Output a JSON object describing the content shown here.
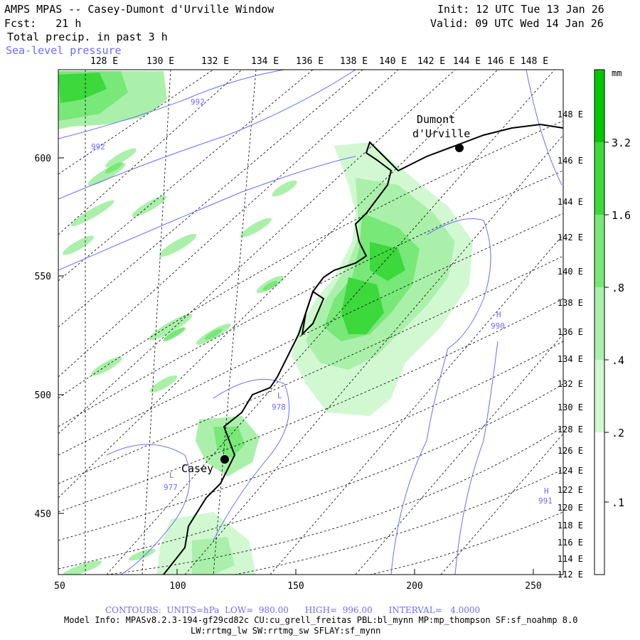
{
  "header": {
    "title": "AMPS MPAS -- Casey-Dumont d'Urville Window",
    "fcst": "Fcst:   21 h",
    "field": "Total precip. in past 3 h",
    "overlay": "Sea-level pressure",
    "init": "Init: 12 UTC Tue 13 Jan 26",
    "valid": "Valid: 09 UTC Wed 14 Jan 26"
  },
  "axes": {
    "top_lon_labels": [
      "128 E",
      "130 E",
      "132 E",
      "134 E",
      "136 E",
      "138 E",
      "140 E",
      "142 E",
      "144 E",
      "146 E",
      "148 E"
    ],
    "right_lon_labels": [
      "148 E",
      "146 E",
      "144 E",
      "142 E",
      "140 E",
      "138 E",
      "136 E",
      "134 E",
      "132 E",
      "130 E",
      "128 E",
      "126 E",
      "124 E",
      "122 E",
      "120 E",
      "118 E",
      "116 E",
      "114 E",
      "112 E"
    ],
    "left_labels": [
      "600",
      "550",
      "500",
      "450"
    ],
    "bottom_labels": [
      "50",
      "100",
      "150",
      "200",
      "250"
    ]
  },
  "places": [
    {
      "name": "Casey",
      "label": "Casey"
    },
    {
      "name": "Dumont d'Urville",
      "label_line1": "Dumont",
      "label_line2": "d'Urville"
    }
  ],
  "pressure_labels": {
    "p992a": "992",
    "p992b": "992",
    "L1": "L",
    "p978": "978",
    "L2": "L",
    "p977": "977",
    "H1": "H",
    "p990": "990",
    "H2": "H",
    "p991": "991"
  },
  "colorbar": {
    "unit": "mm",
    "tick_labels": [
      "3.2",
      "1.6",
      ".8",
      ".4",
      ".2",
      ".1"
    ],
    "colors": [
      "#00c800",
      "#3cd83c",
      "#78e878",
      "#aaf0aa",
      "#d2f8d2",
      "#ffffff"
    ]
  },
  "footer": {
    "contours": "CONTOURS:  UNITS=hPa  LOW=  980.00      HIGH=  996.00      INTERVAL=   4.0000",
    "model_info": "Model Info: MPASv8.2.3-194-gf29cd82c CU:cu_grell_freitas PBL:bl_mynn MP:mp_thompson SF:sf_noahmp 8.0",
    "model_info2": "LW:rrtmg_lw SW:rrtmg_sw SFLAY:sf_mynn"
  }
}
